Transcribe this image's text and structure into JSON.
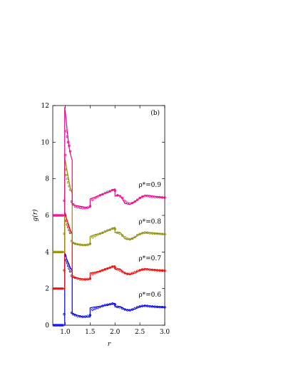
{
  "chart_data": {
    "type": "line",
    "panel_label": "(b)",
    "xlabel": "r",
    "ylabel": "g(r)",
    "xlim": [
      0.75,
      3.0
    ],
    "ylim": [
      0,
      12
    ],
    "x_ticks": [
      1.0,
      1.5,
      2.0,
      2.5,
      3.0
    ],
    "x_tick_labels": [
      "1.0",
      "1.5",
      "2.0",
      "2.5",
      "3.0"
    ],
    "y_ticks": [
      0,
      2,
      4,
      6,
      8,
      10,
      12
    ],
    "y_tick_labels": [
      "0",
      "2",
      "4",
      "6",
      "8",
      "10",
      "12"
    ],
    "grid": false,
    "series": [
      {
        "name": "ρ*=0.6",
        "label_text": "ρ*=0.6",
        "color": "#0000ee",
        "offset": 0,
        "line": {
          "x": [
            0.75,
            0.99,
            0.99,
            1.0,
            1.04,
            1.08,
            1.1,
            1.14,
            1.14,
            1.2,
            1.3,
            1.4,
            1.5,
            1.5,
            1.6,
            1.7,
            1.8,
            1.9,
            2.0,
            2.0,
            2.05,
            2.1,
            2.15,
            2.2,
            2.3,
            2.4,
            2.5,
            2.6,
            2.7,
            2.8,
            2.9,
            3.0
          ],
          "y": [
            0,
            0,
            3.9,
            3.9,
            3.55,
            3.3,
            3.15,
            3.0,
            0.65,
            0.58,
            0.5,
            0.45,
            0.45,
            0.95,
            1.0,
            1.03,
            1.08,
            1.13,
            1.2,
            1.0,
            1.02,
            1.03,
            0.95,
            0.86,
            0.82,
            0.88,
            1.02,
            1.07,
            1.05,
            1.02,
            1.0,
            0.98
          ]
        },
        "points": {
          "x": [
            0.77,
            0.8,
            0.83,
            0.86,
            0.89,
            0.92,
            0.95,
            0.98,
            1.0,
            1.02,
            1.04,
            1.06,
            1.08,
            1.1,
            1.13,
            1.16,
            1.2,
            1.25,
            1.3,
            1.35,
            1.4,
            1.45,
            1.5,
            1.55,
            1.6,
            1.65,
            1.7,
            1.75,
            1.8,
            1.85,
            1.9,
            1.95,
            2.0,
            2.05,
            2.1,
            2.15,
            2.2,
            2.25,
            2.3,
            2.35,
            2.4,
            2.45,
            2.5,
            2.55,
            2.6,
            2.65,
            2.7,
            2.75,
            2.8,
            2.85,
            2.9,
            2.95,
            3.0
          ],
          "y": [
            0,
            0,
            0,
            0,
            0,
            0,
            0,
            0.6,
            3.8,
            3.55,
            3.4,
            3.25,
            3.1,
            2.95,
            0.68,
            0.6,
            0.55,
            0.5,
            0.48,
            0.46,
            0.47,
            0.5,
            0.55,
            0.85,
            0.9,
            0.95,
            1.0,
            1.05,
            1.1,
            1.12,
            1.15,
            1.18,
            1.12,
            1.0,
            0.98,
            0.92,
            0.86,
            0.82,
            0.82,
            0.86,
            0.92,
            0.98,
            1.02,
            1.05,
            1.06,
            1.05,
            1.03,
            1.02,
            1.01,
            1.0,
            0.99,
            0.99,
            0.98
          ]
        }
      },
      {
        "name": "ρ*=0.7",
        "label_text": "ρ*=0.7",
        "color": "#ee0000",
        "offset": 2,
        "line": {
          "x": [
            0.75,
            0.99,
            0.99,
            1.0,
            1.04,
            1.08,
            1.1,
            1.14,
            1.14,
            1.2,
            1.3,
            1.4,
            1.5,
            1.5,
            1.6,
            1.7,
            1.8,
            1.9,
            2.0,
            2.0,
            2.05,
            2.1,
            2.15,
            2.2,
            2.3,
            2.4,
            2.5,
            2.6,
            2.7,
            2.8,
            2.9,
            3.0
          ],
          "y": [
            2,
            2,
            6.2,
            6.1,
            5.7,
            5.4,
            5.2,
            5.0,
            2.65,
            2.6,
            2.55,
            2.5,
            2.5,
            2.85,
            2.9,
            2.95,
            3.05,
            3.15,
            3.25,
            3.05,
            3.08,
            3.08,
            2.95,
            2.83,
            2.78,
            2.85,
            3.0,
            3.08,
            3.06,
            3.02,
            3.0,
            2.98
          ]
        },
        "points": {
          "x": [
            0.77,
            0.8,
            0.83,
            0.86,
            0.89,
            0.92,
            0.95,
            0.98,
            1.0,
            1.02,
            1.04,
            1.06,
            1.08,
            1.1,
            1.13,
            1.16,
            1.2,
            1.25,
            1.3,
            1.35,
            1.4,
            1.45,
            1.5,
            1.55,
            1.6,
            1.65,
            1.7,
            1.75,
            1.8,
            1.85,
            1.9,
            1.95,
            2.0,
            2.05,
            2.1,
            2.15,
            2.2,
            2.25,
            2.3,
            2.35,
            2.4,
            2.45,
            2.5,
            2.55,
            2.6,
            2.65,
            2.7,
            2.75,
            2.8,
            2.85,
            2.9,
            2.95,
            3.0
          ],
          "y": [
            2,
            2,
            2,
            2,
            2,
            2,
            2,
            3.0,
            6.0,
            5.7,
            5.5,
            5.35,
            5.2,
            5.05,
            2.7,
            2.65,
            2.6,
            2.55,
            2.52,
            2.5,
            2.5,
            2.52,
            2.55,
            2.8,
            2.85,
            2.9,
            2.95,
            3.0,
            3.05,
            3.1,
            3.15,
            3.2,
            3.15,
            3.05,
            3.0,
            2.92,
            2.85,
            2.8,
            2.8,
            2.84,
            2.9,
            2.96,
            3.0,
            3.04,
            3.06,
            3.05,
            3.03,
            3.02,
            3.01,
            3.0,
            2.99,
            2.99,
            2.98
          ]
        }
      },
      {
        "name": "ρ*=0.8",
        "label_text": "ρ*=0.8",
        "color": "#8c8c00",
        "offset": 4,
        "line": {
          "x": [
            0.75,
            0.99,
            0.99,
            1.0,
            1.04,
            1.08,
            1.1,
            1.14,
            1.14,
            1.2,
            1.3,
            1.4,
            1.5,
            1.5,
            1.6,
            1.7,
            1.8,
            1.9,
            2.0,
            2.0,
            2.05,
            2.1,
            2.15,
            2.2,
            2.3,
            2.4,
            2.5,
            2.6,
            2.7,
            2.8,
            2.9,
            3.0
          ],
          "y": [
            4,
            4,
            9.2,
            9.0,
            8.4,
            7.8,
            7.5,
            7.2,
            4.5,
            4.45,
            4.4,
            4.38,
            4.4,
            4.85,
            4.95,
            5.0,
            5.1,
            5.22,
            5.35,
            5.05,
            5.08,
            5.07,
            4.92,
            4.72,
            4.68,
            4.8,
            4.98,
            5.08,
            5.06,
            5.02,
            5.0,
            4.97
          ]
        },
        "points": {
          "x": [
            0.77,
            0.8,
            0.83,
            0.86,
            0.89,
            0.92,
            0.95,
            0.98,
            1.0,
            1.02,
            1.04,
            1.06,
            1.08,
            1.1,
            1.13,
            1.16,
            1.2,
            1.25,
            1.3,
            1.35,
            1.4,
            1.45,
            1.5,
            1.55,
            1.6,
            1.65,
            1.7,
            1.75,
            1.8,
            1.85,
            1.9,
            1.95,
            2.0,
            2.05,
            2.1,
            2.15,
            2.2,
            2.25,
            2.3,
            2.35,
            2.4,
            2.45,
            2.5,
            2.55,
            2.6,
            2.65,
            2.7,
            2.75,
            2.8,
            2.85,
            2.9,
            2.95,
            3.0
          ],
          "y": [
            4,
            4,
            4,
            4,
            4,
            4,
            4,
            5.0,
            8.5,
            8.2,
            8.0,
            7.8,
            7.6,
            7.4,
            4.6,
            4.5,
            4.45,
            4.42,
            4.4,
            4.38,
            4.38,
            4.4,
            4.45,
            4.8,
            4.88,
            4.95,
            5.0,
            5.05,
            5.12,
            5.18,
            5.22,
            5.28,
            5.25,
            5.05,
            5.0,
            4.9,
            4.8,
            4.72,
            4.7,
            4.74,
            4.82,
            4.92,
            4.98,
            5.03,
            5.05,
            5.05,
            5.03,
            5.02,
            5.01,
            5.0,
            4.99,
            4.98,
            4.97
          ]
        }
      },
      {
        "name": "ρ*=0.9",
        "label_text": "ρ*=0.9",
        "color": "#ee0088",
        "offset": 6,
        "line": {
          "x": [
            0.75,
            0.99,
            0.99,
            1.0,
            1.02,
            1.04,
            1.06,
            1.08,
            1.1,
            1.12,
            1.14,
            1.14,
            1.2,
            1.3,
            1.4,
            1.5,
            1.5,
            1.6,
            1.7,
            1.8,
            1.9,
            2.0,
            2.0,
            2.05,
            2.1,
            2.15,
            2.2,
            2.3,
            2.4,
            2.5,
            2.6,
            2.7,
            2.8,
            2.9,
            3.0
          ],
          "y": [
            6,
            6,
            11.9,
            11.7,
            11.2,
            10.6,
            10.1,
            9.7,
            9.4,
            9.2,
            9.0,
            6.6,
            6.55,
            6.5,
            6.45,
            6.45,
            6.9,
            7.0,
            7.1,
            7.2,
            7.32,
            7.45,
            7.05,
            7.1,
            7.08,
            6.9,
            6.65,
            6.6,
            6.75,
            6.95,
            7.1,
            7.08,
            7.04,
            7.0,
            6.96
          ]
        },
        "points": {
          "x": [
            0.77,
            0.8,
            0.83,
            0.86,
            0.89,
            0.92,
            0.95,
            0.98,
            1.0,
            1.02,
            1.04,
            1.06,
            1.08,
            1.1,
            1.13,
            1.16,
            1.2,
            1.25,
            1.3,
            1.35,
            1.4,
            1.45,
            1.5,
            1.55,
            1.6,
            1.65,
            1.7,
            1.75,
            1.8,
            1.85,
            1.9,
            1.95,
            2.0,
            2.05,
            2.1,
            2.15,
            2.2,
            2.25,
            2.3,
            2.35,
            2.4,
            2.45,
            2.5,
            2.55,
            2.6,
            2.65,
            2.7,
            2.75,
            2.8,
            2.85,
            2.9,
            2.95,
            3.0
          ],
          "y": [
            6,
            6,
            6,
            6,
            6,
            6,
            6,
            6.8,
            9.3,
            10.6,
            10.3,
            10.0,
            9.8,
            9.5,
            6.75,
            6.6,
            6.5,
            6.45,
            6.42,
            6.4,
            6.4,
            6.42,
            6.5,
            6.85,
            6.95,
            7.02,
            7.1,
            7.15,
            7.22,
            7.28,
            7.32,
            7.38,
            7.35,
            7.1,
            7.05,
            6.95,
            6.78,
            6.68,
            6.65,
            6.68,
            6.75,
            6.85,
            6.95,
            7.02,
            7.06,
            7.06,
            7.04,
            7.02,
            7.01,
            7.0,
            6.99,
            6.98,
            6.97
          ]
        }
      }
    ]
  }
}
